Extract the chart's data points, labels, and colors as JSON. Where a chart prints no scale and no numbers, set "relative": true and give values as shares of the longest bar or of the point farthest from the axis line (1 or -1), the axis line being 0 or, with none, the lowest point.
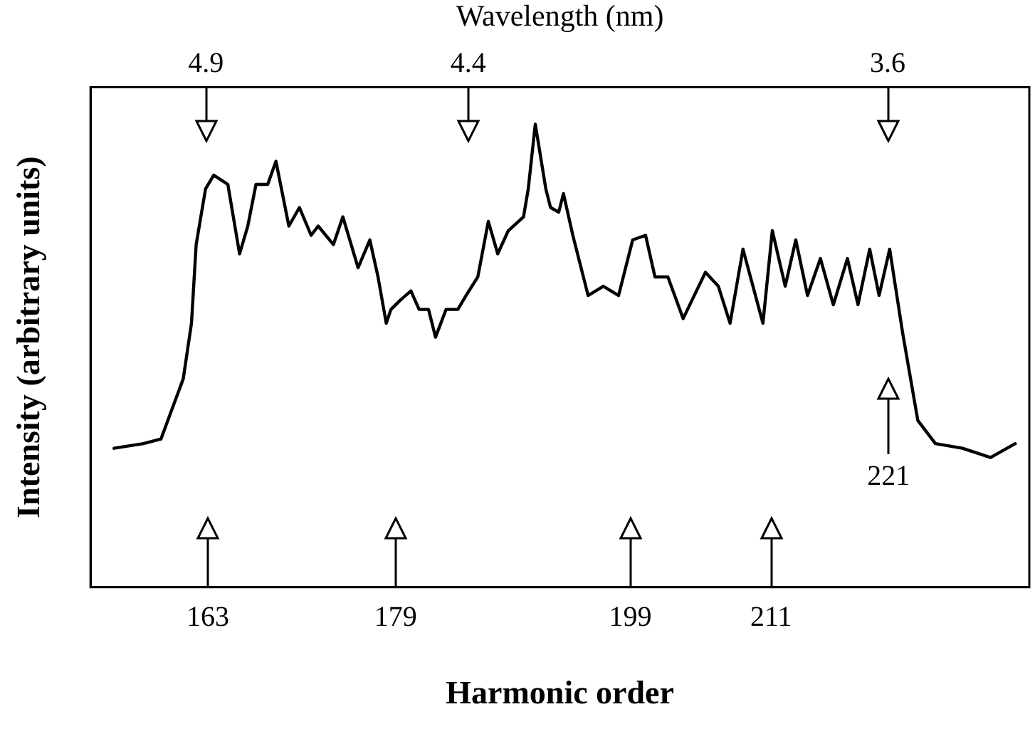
{
  "chart_data": {
    "type": "line",
    "xlabel": "Harmonic order",
    "ylabel": "Intensity (arbitrary units)",
    "x2label": "Wavelength (nm)",
    "relative": true,
    "xlim": [
      153,
      233
    ],
    "xticks": [
      163,
      179,
      199,
      211
    ],
    "x2lim": [
      5.12,
      3.33
    ],
    "x2ticks": [
      4.9,
      4.4,
      3.6
    ],
    "legend": false,
    "marker": "none",
    "line_style": "solid",
    "series": [
      {
        "color": "#000000",
        "x": [
          155.0,
          157.5,
          159.0,
          160.9,
          161.6,
          162.0,
          162.8,
          163.5,
          164.7,
          165.7,
          166.4,
          167.1,
          168.1,
          168.8,
          169.9,
          170.8,
          171.8,
          172.4,
          173.7,
          174.5,
          175.8,
          176.8,
          177.5,
          178.2,
          178.6,
          179.4,
          180.3,
          181.0,
          181.8,
          182.4,
          183.3,
          184.3,
          185.0,
          186.0,
          186.9,
          187.7,
          188.6,
          189.9,
          190.3,
          190.9,
          191.8,
          192.2,
          192.9,
          193.3,
          194.1,
          195.4,
          196.7,
          198.0,
          199.2,
          200.3,
          201.1,
          202.2,
          203.5,
          205.4,
          206.5,
          207.5,
          208.6,
          210.3,
          211.1,
          212.2,
          213.1,
          214.1,
          215.2,
          216.3,
          217.5,
          218.4,
          219.4,
          220.2,
          221.1,
          222.2,
          223.5,
          225.0,
          227.3,
          229.7,
          231.8
        ],
        "values": [
          0.3,
          0.31,
          0.32,
          0.45,
          0.57,
          0.74,
          0.86,
          0.89,
          0.87,
          0.72,
          0.78,
          0.87,
          0.87,
          0.92,
          0.78,
          0.82,
          0.76,
          0.78,
          0.74,
          0.8,
          0.69,
          0.75,
          0.67,
          0.57,
          0.6,
          0.62,
          0.64,
          0.6,
          0.6,
          0.54,
          0.6,
          0.6,
          0.63,
          0.67,
          0.79,
          0.72,
          0.77,
          0.8,
          0.86,
          1.0,
          0.86,
          0.82,
          0.81,
          0.85,
          0.76,
          0.63,
          0.65,
          0.63,
          0.75,
          0.76,
          0.67,
          0.67,
          0.58,
          0.68,
          0.65,
          0.57,
          0.73,
          0.57,
          0.77,
          0.65,
          0.75,
          0.63,
          0.71,
          0.61,
          0.71,
          0.61,
          0.73,
          0.63,
          0.73,
          0.55,
          0.36,
          0.31,
          0.3,
          0.28,
          0.31
        ]
      }
    ],
    "annotations": [
      {
        "text": "221",
        "x": 221
      }
    ]
  }
}
